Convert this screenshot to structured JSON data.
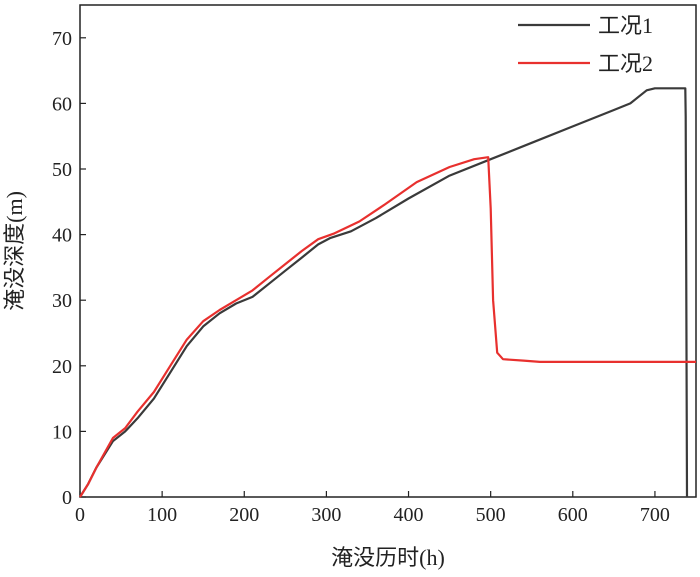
{
  "chart_data": {
    "type": "line",
    "xlabel": "淹没历时(h)",
    "ylabel": "淹没深度(m)",
    "xlim": [
      0,
      750
    ],
    "ylim": [
      0,
      75
    ],
    "xticks": [
      0,
      100,
      200,
      300,
      400,
      500,
      600,
      700
    ],
    "yticks": [
      0,
      10,
      20,
      30,
      40,
      50,
      60,
      70
    ],
    "grid": false,
    "legend_position": "top-right",
    "series": [
      {
        "name": "工况1",
        "color": "#3a3a3a",
        "points": [
          [
            0,
            0
          ],
          [
            10,
            2
          ],
          [
            20,
            4.5
          ],
          [
            40,
            8.5
          ],
          [
            55,
            10
          ],
          [
            70,
            12
          ],
          [
            90,
            15
          ],
          [
            110,
            19
          ],
          [
            130,
            23
          ],
          [
            150,
            26
          ],
          [
            170,
            28
          ],
          [
            190,
            29.5
          ],
          [
            210,
            30.5
          ],
          [
            230,
            32.5
          ],
          [
            250,
            34.5
          ],
          [
            270,
            36.5
          ],
          [
            290,
            38.5
          ],
          [
            305,
            39.5
          ],
          [
            330,
            40.5
          ],
          [
            360,
            42.5
          ],
          [
            400,
            45.5
          ],
          [
            450,
            49
          ],
          [
            500,
            51.5
          ],
          [
            550,
            54
          ],
          [
            600,
            56.5
          ],
          [
            650,
            59
          ],
          [
            670,
            60
          ],
          [
            690,
            62
          ],
          [
            700,
            62.3
          ],
          [
            737,
            62.3
          ],
          [
            737.5,
            58
          ],
          [
            739,
            0
          ]
        ]
      },
      {
        "name": "工况2",
        "color": "#e8302e",
        "points": [
          [
            0,
            0
          ],
          [
            10,
            2
          ],
          [
            20,
            4.5
          ],
          [
            40,
            9
          ],
          [
            55,
            10.5
          ],
          [
            70,
            13
          ],
          [
            90,
            16
          ],
          [
            110,
            20
          ],
          [
            130,
            24
          ],
          [
            150,
            26.8
          ],
          [
            170,
            28.5
          ],
          [
            190,
            30
          ],
          [
            210,
            31.5
          ],
          [
            230,
            33.5
          ],
          [
            250,
            35.5
          ],
          [
            270,
            37.5
          ],
          [
            290,
            39.3
          ],
          [
            310,
            40.2
          ],
          [
            340,
            42
          ],
          [
            370,
            44.5
          ],
          [
            410,
            48
          ],
          [
            450,
            50.3
          ],
          [
            480,
            51.5
          ],
          [
            497,
            51.8
          ],
          [
            500,
            44
          ],
          [
            503,
            30
          ],
          [
            508,
            22
          ],
          [
            515,
            21
          ],
          [
            540,
            20.8
          ],
          [
            560,
            20.6
          ],
          [
            600,
            20.6
          ],
          [
            700,
            20.6
          ],
          [
            750,
            20.6
          ]
        ]
      }
    ]
  }
}
